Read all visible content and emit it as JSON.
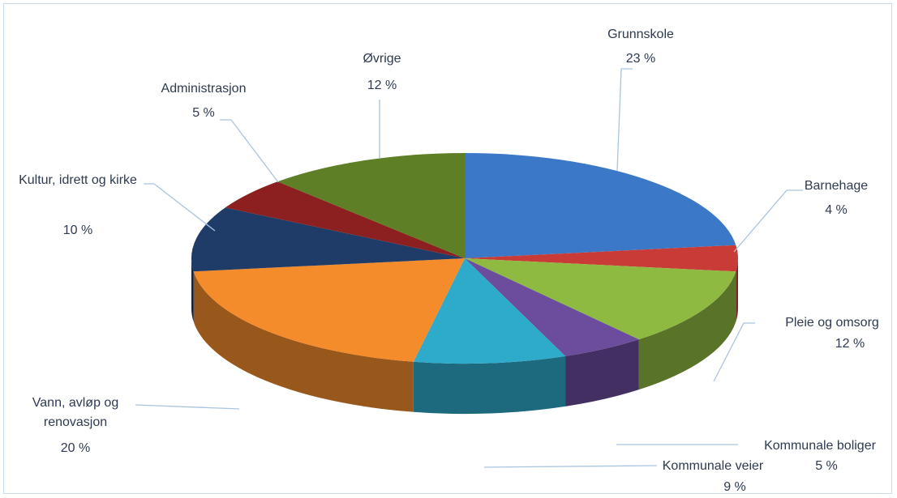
{
  "chart_data": {
    "type": "pie3d",
    "categories": [
      "Grunnskole",
      "Barnehage",
      "Pleie og omsorg",
      "Kommunale boliger",
      "Kommunale veier",
      "Vann, avløp og renovasjon",
      "Kultur, idrett og kirke",
      "Administrasjon",
      "Øvrige"
    ],
    "values": [
      23,
      4,
      12,
      5,
      9,
      20,
      10,
      5,
      12
    ],
    "value_labels": [
      "23 %",
      "4 %",
      "12 %",
      "5 %",
      "9 %",
      "20 %",
      "10 %",
      "5 %",
      "12 %"
    ],
    "colors": [
      "#3b78c8",
      "#c93b36",
      "#8fba42",
      "#6c4c9c",
      "#2eaacb",
      "#f58c2c",
      "#1f3b68",
      "#8c1f1f",
      "#5f7f26"
    ]
  }
}
